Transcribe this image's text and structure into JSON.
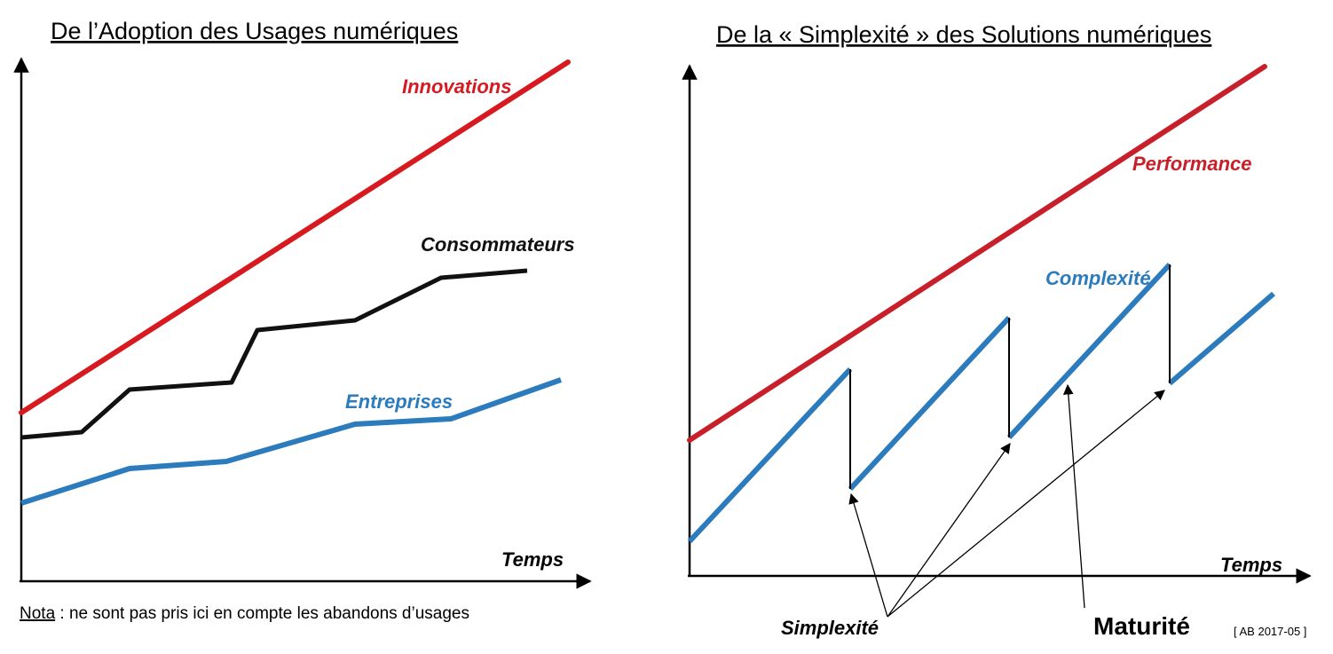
{
  "left_panel": {
    "title": "De l’Adoption des Usages numériques",
    "x_axis_label": "Temps",
    "series": [
      {
        "key": "innovations",
        "label": "Innovations",
        "color": "#d71920"
      },
      {
        "key": "consommateurs",
        "label": "Consommateurs",
        "color": "#111111"
      },
      {
        "key": "entreprises",
        "label": "Entreprises",
        "color": "#2b7bbd"
      }
    ],
    "note": {
      "key": "Nota",
      "text": " : ne sont pas pris ici en compte les abandons d’usages"
    }
  },
  "right_panel": {
    "title": "De la « Simplexité » des Solutions numériques",
    "x_axis_label": "Temps",
    "series": [
      {
        "key": "performance",
        "label": "Performance",
        "color": "#c8202a"
      },
      {
        "key": "complexite",
        "label": "Complexité",
        "color": "#2b7bbd"
      }
    ],
    "annotations": {
      "simplexite": "Simplexité",
      "maturite": "Maturité"
    },
    "credit": "[ AB 2017-05 ]"
  }
}
